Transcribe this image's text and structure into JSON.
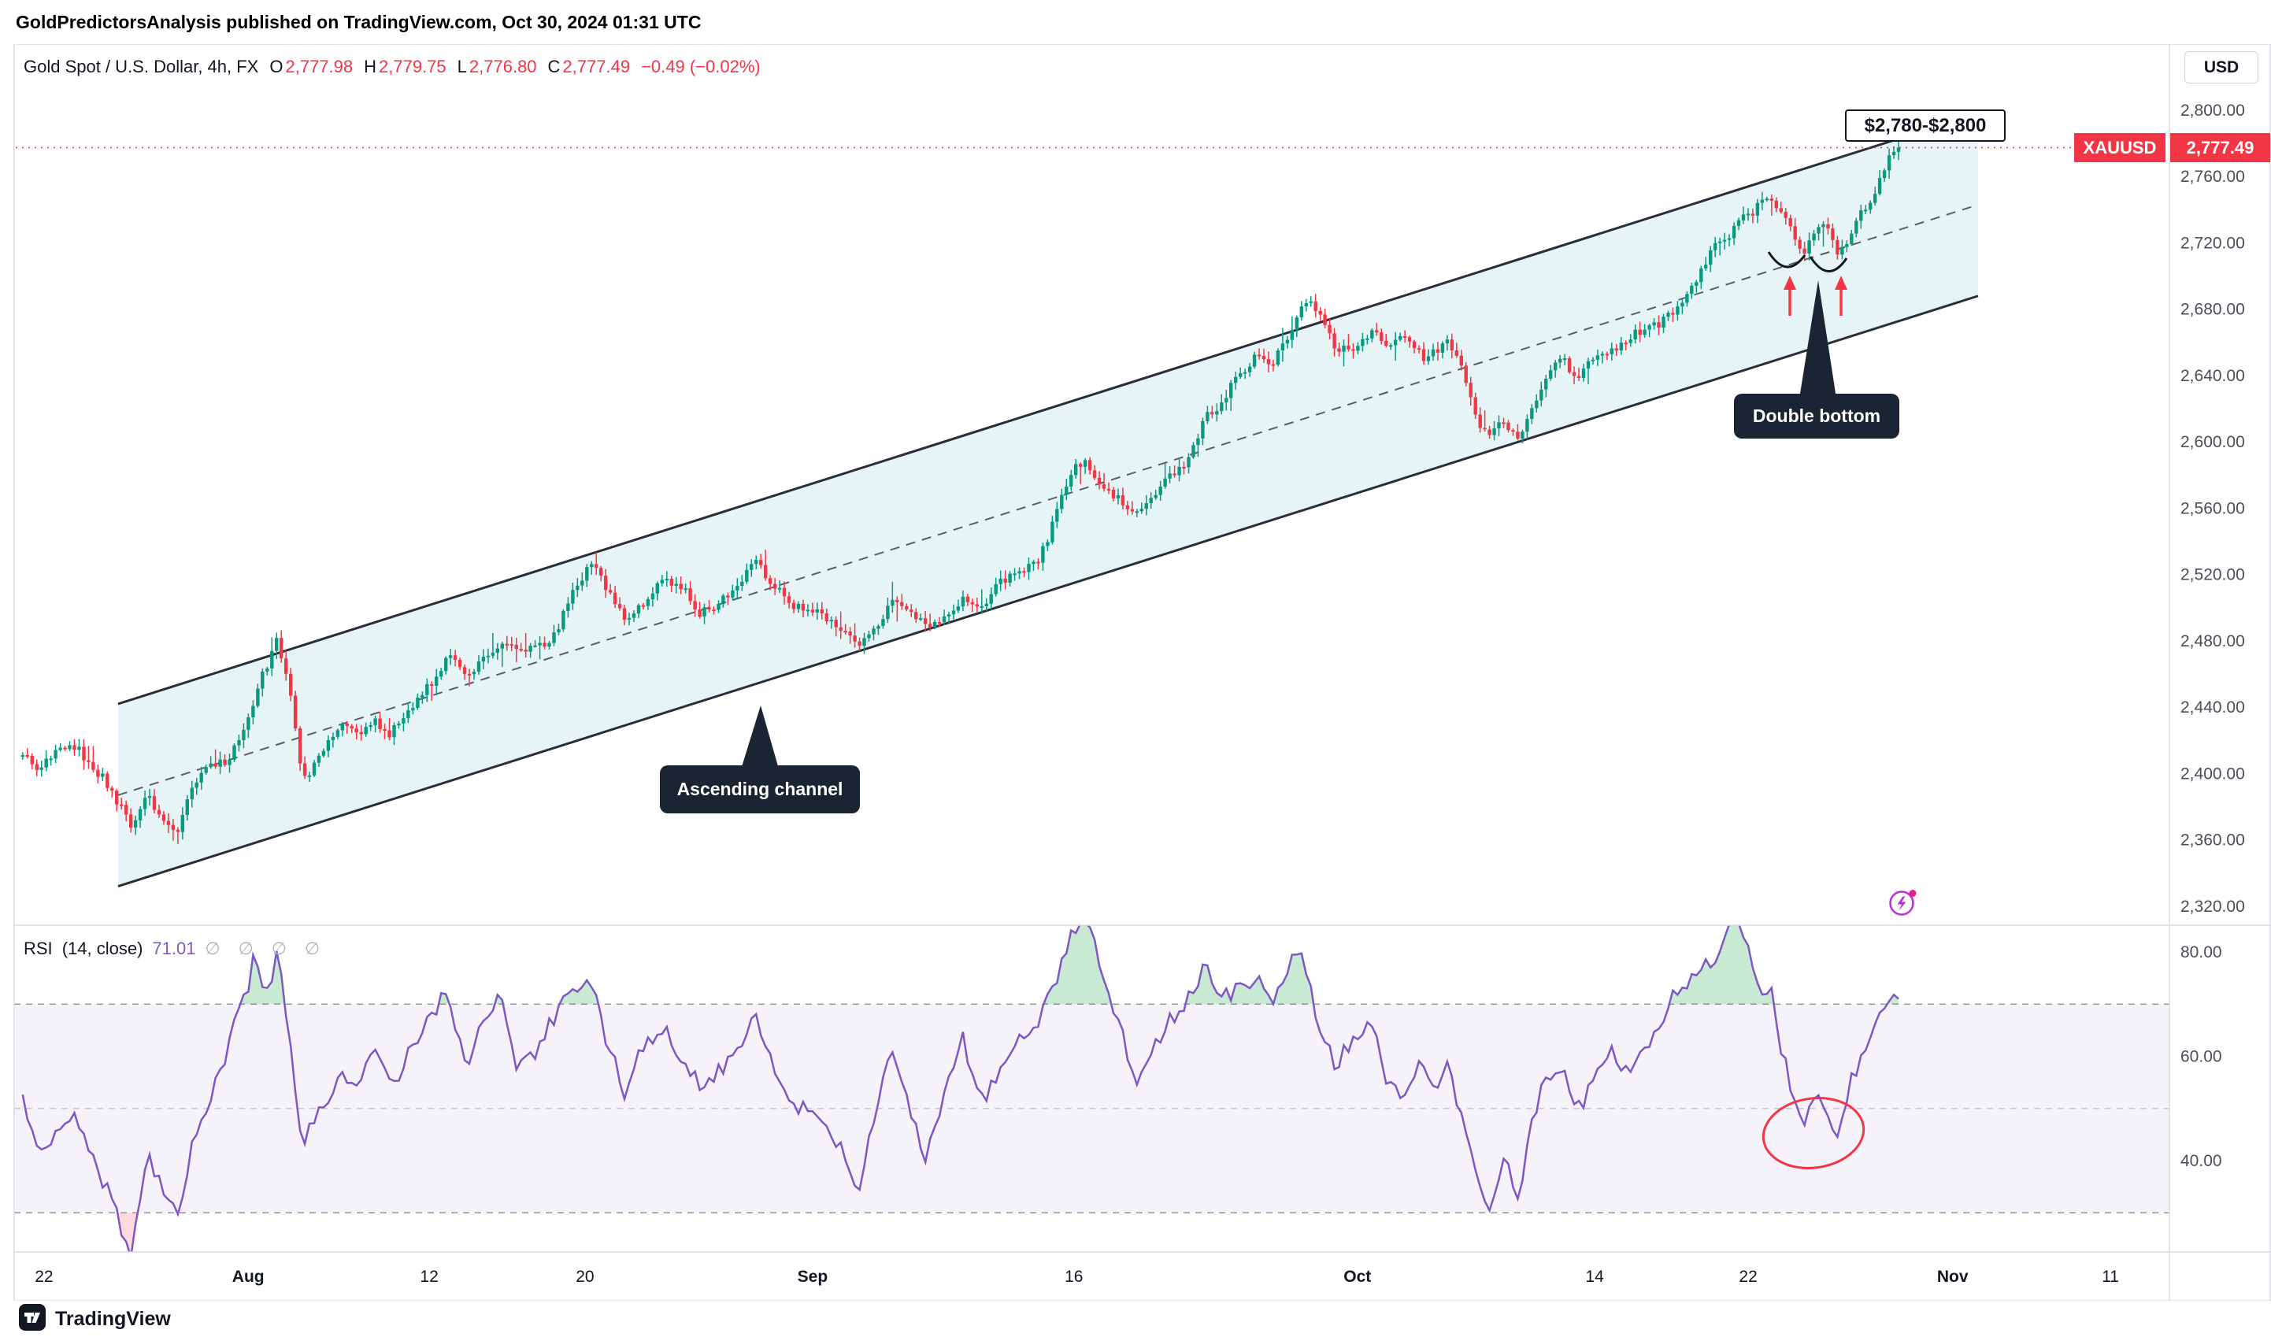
{
  "attribution": "GoldPredictorsAnalysis published on TradingView.com, Oct 30, 2024 01:31 UTC",
  "header": {
    "title": "Gold Spot / U.S. Dollar, 4h, FX",
    "ohlc": [
      {
        "k": "O",
        "v": "2,777.98"
      },
      {
        "k": "H",
        "v": "2,779.75"
      },
      {
        "k": "L",
        "v": "2,776.80"
      },
      {
        "k": "C",
        "v": "2,777.49"
      }
    ],
    "change": "−0.49 (−0.02%)"
  },
  "rsi_legend": {
    "name": "RSI",
    "params": "(14, close)",
    "value": "71.01",
    "empties": "∅ ∅ ∅ ∅"
  },
  "price_axis": {
    "currency": "USD",
    "symbol_tag": "XAUUSD",
    "last_price": "2,777.49",
    "ticks": [
      {
        "v": 2800,
        "label": "2,800.00"
      },
      {
        "v": 2760,
        "label": "2,760.00"
      },
      {
        "v": 2720,
        "label": "2,720.00"
      },
      {
        "v": 2680,
        "label": "2,680.00"
      },
      {
        "v": 2640,
        "label": "2,640.00"
      },
      {
        "v": 2600,
        "label": "2,600.00"
      },
      {
        "v": 2560,
        "label": "2,560.00"
      },
      {
        "v": 2520,
        "label": "2,520.00"
      },
      {
        "v": 2480,
        "label": "2,480.00"
      },
      {
        "v": 2440,
        "label": "2,440.00"
      },
      {
        "v": 2400,
        "label": "2,400.00"
      },
      {
        "v": 2360,
        "label": "2,360.00"
      },
      {
        "v": 2320,
        "label": "2,320.00"
      }
    ]
  },
  "rsi_axis": {
    "ticks": [
      {
        "v": 80,
        "label": "80.00"
      },
      {
        "v": 60,
        "label": "60.00"
      },
      {
        "v": 40,
        "label": "40.00"
      }
    ]
  },
  "time_axis": {
    "ticks": [
      {
        "x": 0.0194,
        "label": "22",
        "major": false
      },
      {
        "x": 0.1093,
        "label": "Aug",
        "major": true
      },
      {
        "x": 0.189,
        "label": "12",
        "major": false
      },
      {
        "x": 0.2576,
        "label": "20",
        "major": false
      },
      {
        "x": 0.3578,
        "label": "Sep",
        "major": true
      },
      {
        "x": 0.4729,
        "label": "16",
        "major": false
      },
      {
        "x": 0.5977,
        "label": "Oct",
        "major": true
      },
      {
        "x": 0.7022,
        "label": "14",
        "major": false
      },
      {
        "x": 0.7698,
        "label": "22",
        "major": false
      },
      {
        "x": 0.8598,
        "label": "Nov",
        "major": true
      },
      {
        "x": 0.9293,
        "label": "11",
        "major": false
      }
    ]
  },
  "annotations": {
    "target_box": {
      "text": "$2,780-$2,800"
    },
    "double_bottom": {
      "text": "Double bottom"
    },
    "ascending_channel": {
      "text": "Ascending channel"
    }
  },
  "footer": {
    "brand": "TradingView"
  },
  "colors": {
    "up": "#089981",
    "down": "#F23645",
    "rsi": "#7E57C2",
    "rsi_band": "rgba(126,87,194,0.08)",
    "channel_line": "#2A2E39",
    "channel_fill": "rgba(22,148,160,0.10)",
    "callout_bg": "#1B2433"
  },
  "chart_data": [
    {
      "type": "candlestick",
      "name": "Gold Spot / U.S. Dollar (XAUUSD), 4h, FX",
      "ohlc_last": {
        "open": 2777.98,
        "high": 2779.75,
        "low": 2776.8,
        "close": 2777.49,
        "change": -0.49,
        "change_pct": -0.02
      },
      "ylim": [
        2320,
        2800
      ],
      "y_tick_interval": 40,
      "x_tick_labels": [
        "22",
        "Aug",
        "12",
        "20",
        "Sep",
        "16",
        "Oct",
        "14",
        "22",
        "Nov",
        "11"
      ],
      "last_close": 2777.49,
      "trend_anchors": [
        [
          0.01,
          2408
        ],
        [
          0.018,
          2398
        ],
        [
          0.026,
          2412
        ],
        [
          0.034,
          2420
        ],
        [
          0.04,
          2405
        ],
        [
          0.046,
          2398
        ],
        [
          0.052,
          2380
        ],
        [
          0.058,
          2368
        ],
        [
          0.065,
          2390
        ],
        [
          0.072,
          2378
        ],
        [
          0.078,
          2365
        ],
        [
          0.085,
          2392
        ],
        [
          0.092,
          2402
        ],
        [
          0.1,
          2408
        ],
        [
          0.108,
          2428
        ],
        [
          0.115,
          2455
        ],
        [
          0.122,
          2475
        ],
        [
          0.128,
          2445
        ],
        [
          0.133,
          2392
        ],
        [
          0.14,
          2412
        ],
        [
          0.15,
          2428
        ],
        [
          0.158,
          2422
        ],
        [
          0.165,
          2432
        ],
        [
          0.172,
          2428
        ],
        [
          0.18,
          2442
        ],
        [
          0.19,
          2455
        ],
        [
          0.198,
          2468
        ],
        [
          0.205,
          2462
        ],
        [
          0.212,
          2470
        ],
        [
          0.22,
          2478
        ],
        [
          0.228,
          2468
        ],
        [
          0.235,
          2472
        ],
        [
          0.243,
          2482
        ],
        [
          0.252,
          2508
        ],
        [
          0.26,
          2524
        ],
        [
          0.268,
          2506
        ],
        [
          0.275,
          2494
        ],
        [
          0.283,
          2508
        ],
        [
          0.292,
          2518
        ],
        [
          0.3,
          2512
        ],
        [
          0.308,
          2498
        ],
        [
          0.316,
          2506
        ],
        [
          0.324,
          2514
        ],
        [
          0.332,
          2524
        ],
        [
          0.34,
          2512
        ],
        [
          0.35,
          2502
        ],
        [
          0.36,
          2496
        ],
        [
          0.37,
          2484
        ],
        [
          0.378,
          2474
        ],
        [
          0.386,
          2492
        ],
        [
          0.394,
          2508
        ],
        [
          0.4,
          2498
        ],
        [
          0.408,
          2486
        ],
        [
          0.416,
          2498
        ],
        [
          0.424,
          2512
        ],
        [
          0.432,
          2502
        ],
        [
          0.44,
          2512
        ],
        [
          0.45,
          2520
        ],
        [
          0.458,
          2532
        ],
        [
          0.466,
          2558
        ],
        [
          0.472,
          2578
        ],
        [
          0.478,
          2584
        ],
        [
          0.486,
          2572
        ],
        [
          0.494,
          2566
        ],
        [
          0.5,
          2556
        ],
        [
          0.506,
          2562
        ],
        [
          0.514,
          2576
        ],
        [
          0.522,
          2590
        ],
        [
          0.53,
          2618
        ],
        [
          0.538,
          2626
        ],
        [
          0.546,
          2640
        ],
        [
          0.554,
          2652
        ],
        [
          0.56,
          2648
        ],
        [
          0.566,
          2664
        ],
        [
          0.572,
          2678
        ],
        [
          0.576,
          2684
        ],
        [
          0.582,
          2668
        ],
        [
          0.588,
          2652
        ],
        [
          0.596,
          2658
        ],
        [
          0.604,
          2668
        ],
        [
          0.61,
          2656
        ],
        [
          0.618,
          2660
        ],
        [
          0.626,
          2652
        ],
        [
          0.632,
          2658
        ],
        [
          0.638,
          2664
        ],
        [
          0.644,
          2645
        ],
        [
          0.65,
          2612
        ],
        [
          0.656,
          2604
        ],
        [
          0.662,
          2616
        ],
        [
          0.668,
          2604
        ],
        [
          0.674,
          2622
        ],
        [
          0.68,
          2638
        ],
        [
          0.688,
          2646
        ],
        [
          0.694,
          2636
        ],
        [
          0.7,
          2648
        ],
        [
          0.708,
          2654
        ],
        [
          0.716,
          2658
        ],
        [
          0.724,
          2664
        ],
        [
          0.732,
          2672
        ],
        [
          0.74,
          2688
        ],
        [
          0.748,
          2700
        ],
        [
          0.754,
          2714
        ],
        [
          0.76,
          2722
        ],
        [
          0.766,
          2736
        ],
        [
          0.772,
          2744
        ],
        [
          0.777,
          2754
        ],
        [
          0.781,
          2748
        ],
        [
          0.786,
          2736
        ],
        [
          0.79,
          2720
        ],
        [
          0.794,
          2712
        ],
        [
          0.799,
          2726
        ],
        [
          0.804,
          2730
        ],
        [
          0.809,
          2716
        ],
        [
          0.814,
          2724
        ],
        [
          0.819,
          2736
        ],
        [
          0.824,
          2742
        ],
        [
          0.829,
          2756
        ],
        [
          0.833,
          2770
        ],
        [
          0.836,
          2777.49
        ]
      ],
      "channel": {
        "label": "Ascending channel",
        "lower": [
          [
            0.052,
            2332
          ],
          [
            0.871,
            2688
          ]
        ],
        "width_price": 110,
        "mid_offset": 55
      },
      "annotations": [
        "$2,780-$2,800 target zone",
        "Double bottom"
      ]
    },
    {
      "type": "line",
      "name": "RSI (14, close)",
      "last_value": 71.01,
      "bands": [
        70,
        50,
        30
      ],
      "y_ticks": [
        80,
        60,
        40
      ],
      "anchors": [
        [
          0.01,
          52
        ],
        [
          0.018,
          40
        ],
        [
          0.026,
          46
        ],
        [
          0.034,
          50
        ],
        [
          0.04,
          40
        ],
        [
          0.046,
          34
        ],
        [
          0.052,
          28
        ],
        [
          0.058,
          24
        ],
        [
          0.065,
          42
        ],
        [
          0.072,
          34
        ],
        [
          0.078,
          28
        ],
        [
          0.085,
          45
        ],
        [
          0.092,
          52
        ],
        [
          0.1,
          60
        ],
        [
          0.108,
          70
        ],
        [
          0.112,
          79
        ],
        [
          0.118,
          73
        ],
        [
          0.122,
          81
        ],
        [
          0.128,
          62
        ],
        [
          0.133,
          40
        ],
        [
          0.14,
          50
        ],
        [
          0.15,
          58
        ],
        [
          0.158,
          52
        ],
        [
          0.165,
          60
        ],
        [
          0.172,
          55
        ],
        [
          0.18,
          62
        ],
        [
          0.19,
          66
        ],
        [
          0.196,
          72
        ],
        [
          0.205,
          60
        ],
        [
          0.212,
          66
        ],
        [
          0.22,
          70
        ],
        [
          0.228,
          58
        ],
        [
          0.235,
          62
        ],
        [
          0.243,
          66
        ],
        [
          0.252,
          72
        ],
        [
          0.26,
          77
        ],
        [
          0.268,
          62
        ],
        [
          0.275,
          52
        ],
        [
          0.283,
          62
        ],
        [
          0.292,
          67
        ],
        [
          0.3,
          60
        ],
        [
          0.308,
          52
        ],
        [
          0.316,
          58
        ],
        [
          0.324,
          62
        ],
        [
          0.332,
          68
        ],
        [
          0.34,
          58
        ],
        [
          0.35,
          52
        ],
        [
          0.36,
          48
        ],
        [
          0.37,
          42
        ],
        [
          0.378,
          36
        ],
        [
          0.386,
          50
        ],
        [
          0.394,
          60
        ],
        [
          0.4,
          50
        ],
        [
          0.408,
          42
        ],
        [
          0.416,
          52
        ],
        [
          0.424,
          62
        ],
        [
          0.432,
          52
        ],
        [
          0.44,
          58
        ],
        [
          0.45,
          62
        ],
        [
          0.458,
          67
        ],
        [
          0.466,
          78
        ],
        [
          0.472,
          84
        ],
        [
          0.478,
          86
        ],
        [
          0.486,
          74
        ],
        [
          0.494,
          68
        ],
        [
          0.5,
          54
        ],
        [
          0.506,
          58
        ],
        [
          0.514,
          66
        ],
        [
          0.522,
          72
        ],
        [
          0.53,
          77
        ],
        [
          0.538,
          70
        ],
        [
          0.546,
          73
        ],
        [
          0.554,
          76
        ],
        [
          0.56,
          70
        ],
        [
          0.566,
          74
        ],
        [
          0.572,
          79
        ],
        [
          0.576,
          76
        ],
        [
          0.582,
          66
        ],
        [
          0.588,
          58
        ],
        [
          0.596,
          62
        ],
        [
          0.604,
          68
        ],
        [
          0.61,
          58
        ],
        [
          0.618,
          52
        ],
        [
          0.626,
          57
        ],
        [
          0.632,
          54
        ],
        [
          0.638,
          60
        ],
        [
          0.644,
          48
        ],
        [
          0.65,
          36
        ],
        [
          0.656,
          29
        ],
        [
          0.662,
          42
        ],
        [
          0.668,
          34
        ],
        [
          0.674,
          46
        ],
        [
          0.68,
          54
        ],
        [
          0.688,
          58
        ],
        [
          0.694,
          50
        ],
        [
          0.7,
          56
        ],
        [
          0.708,
          60
        ],
        [
          0.716,
          56
        ],
        [
          0.724,
          62
        ],
        [
          0.732,
          67
        ],
        [
          0.74,
          72
        ],
        [
          0.748,
          76
        ],
        [
          0.754,
          80
        ],
        [
          0.76,
          83
        ],
        [
          0.765,
          87
        ],
        [
          0.77,
          79
        ],
        [
          0.775,
          72
        ],
        [
          0.779,
          75
        ],
        [
          0.785,
          62
        ],
        [
          0.79,
          52
        ],
        [
          0.795,
          45
        ],
        [
          0.799,
          52
        ],
        [
          0.804,
          48
        ],
        [
          0.809,
          44
        ],
        [
          0.814,
          55
        ],
        [
          0.819,
          60
        ],
        [
          0.824,
          64
        ],
        [
          0.829,
          67
        ],
        [
          0.833,
          70
        ],
        [
          0.836,
          71.01
        ]
      ]
    }
  ]
}
